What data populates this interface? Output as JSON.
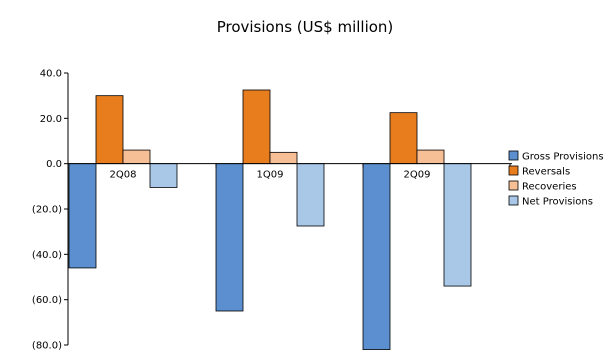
{
  "chart_data": {
    "type": "bar",
    "title": "Provisions (US$ million)",
    "categories": [
      "2Q08",
      "1Q09",
      "2Q09"
    ],
    "series": [
      {
        "name": "Gross Provisions",
        "color": "#5b8fcf",
        "values": [
          -46.0,
          -65.0,
          -82.0
        ]
      },
      {
        "name": "Reversals",
        "color": "#e87d1e",
        "values": [
          30.0,
          32.5,
          22.5
        ]
      },
      {
        "name": "Recoveries",
        "color": "#f7bf95",
        "values": [
          6.0,
          5.0,
          6.0
        ]
      },
      {
        "name": "Net Provisions",
        "color": "#a9c8e8",
        "values": [
          -10.5,
          -27.5,
          -54.0
        ]
      }
    ],
    "ylim": [
      -80,
      40
    ],
    "yticks": [
      40,
      20,
      0,
      -20,
      -40,
      -60,
      -80
    ],
    "ytick_labels": [
      "40.0",
      "20.0",
      "0.0",
      "(20.0)",
      "(40.0)",
      "(60.0)",
      "(80.0)"
    ],
    "grid": false,
    "legend": "right"
  }
}
